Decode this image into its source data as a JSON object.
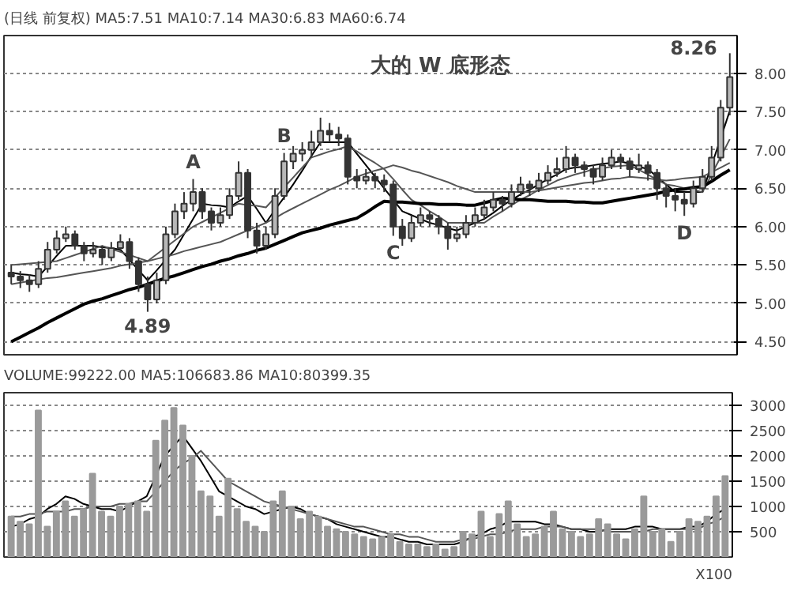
{
  "chart_data": [
    {
      "type": "candlestick",
      "title": "(日线 前复权) MA5:7.51 MA10:7.14 MA30:6.83 MA60:6.74",
      "color": "#333333",
      "categories": [
        null,
        null,
        null,
        null,
        null,
        null,
        null,
        null,
        null,
        null,
        null,
        null,
        null,
        null,
        null,
        null,
        null,
        null,
        null,
        null,
        null,
        null,
        null,
        null,
        null,
        null,
        null,
        null,
        null,
        null,
        null,
        null,
        null,
        null,
        null,
        null,
        null,
        null,
        null,
        null,
        null,
        null,
        null,
        null,
        null,
        null,
        null,
        null,
        null,
        null,
        null,
        null,
        null,
        null,
        null,
        null,
        null,
        null,
        null,
        null,
        null,
        null,
        null,
        null,
        null,
        null,
        null,
        null,
        null,
        null,
        null,
        null,
        null,
        null,
        null,
        null,
        null,
        null,
        null,
        null
      ],
      "ohlc": [
        [
          5.4,
          5.5,
          5.25,
          5.35
        ],
        [
          5.35,
          5.42,
          5.2,
          5.3
        ],
        [
          5.3,
          5.38,
          5.15,
          5.25
        ],
        [
          5.25,
          5.55,
          5.2,
          5.45
        ],
        [
          5.45,
          5.8,
          5.4,
          5.7
        ],
        [
          5.7,
          5.95,
          5.65,
          5.85
        ],
        [
          5.85,
          6.0,
          5.8,
          5.9
        ],
        [
          5.9,
          5.95,
          5.7,
          5.75
        ],
        [
          5.75,
          5.8,
          5.55,
          5.65
        ],
        [
          5.65,
          5.8,
          5.6,
          5.7
        ],
        [
          5.7,
          5.75,
          5.5,
          5.6
        ],
        [
          5.6,
          5.8,
          5.55,
          5.72
        ],
        [
          5.72,
          5.9,
          5.68,
          5.8
        ],
        [
          5.8,
          5.85,
          5.45,
          5.55
        ],
        [
          5.55,
          5.6,
          5.15,
          5.25
        ],
        [
          5.25,
          5.35,
          4.89,
          5.05
        ],
        [
          5.05,
          5.4,
          5.0,
          5.3
        ],
        [
          5.3,
          6.0,
          5.25,
          5.9
        ],
        [
          5.9,
          6.3,
          5.85,
          6.2
        ],
        [
          6.2,
          6.45,
          6.1,
          6.3
        ],
        [
          6.3,
          6.62,
          6.2,
          6.45
        ],
        [
          6.45,
          6.5,
          6.1,
          6.2
        ],
        [
          6.2,
          6.25,
          5.95,
          6.05
        ],
        [
          6.05,
          6.25,
          6.0,
          6.15
        ],
        [
          6.15,
          6.5,
          6.1,
          6.4
        ],
        [
          6.4,
          6.85,
          6.35,
          6.7
        ],
        [
          6.7,
          6.75,
          5.85,
          5.95
        ],
        [
          5.95,
          6.05,
          5.65,
          5.75
        ],
        [
          5.75,
          6.0,
          5.7,
          5.9
        ],
        [
          5.9,
          6.5,
          5.85,
          6.4
        ],
        [
          6.4,
          6.96,
          6.35,
          6.85
        ],
        [
          6.85,
          7.05,
          6.75,
          6.95
        ],
        [
          6.95,
          7.1,
          6.85,
          7.0
        ],
        [
          7.0,
          7.25,
          6.9,
          7.1
        ],
        [
          7.1,
          7.42,
          7.05,
          7.25
        ],
        [
          7.25,
          7.35,
          7.1,
          7.2
        ],
        [
          7.2,
          7.3,
          7.05,
          7.15
        ],
        [
          7.15,
          7.2,
          6.55,
          6.65
        ],
        [
          6.65,
          6.75,
          6.5,
          6.6
        ],
        [
          6.6,
          6.75,
          6.55,
          6.65
        ],
        [
          6.65,
          6.7,
          6.5,
          6.6
        ],
        [
          6.6,
          6.68,
          6.45,
          6.55
        ],
        [
          6.55,
          6.6,
          5.88,
          6.0
        ],
        [
          6.0,
          6.1,
          5.75,
          5.85
        ],
        [
          5.85,
          6.15,
          5.8,
          6.05
        ],
        [
          6.05,
          6.25,
          6.0,
          6.15
        ],
        [
          6.15,
          6.2,
          6.0,
          6.1
        ],
        [
          6.1,
          6.15,
          5.9,
          6.0
        ],
        [
          6.0,
          6.05,
          5.7,
          5.85
        ],
        [
          5.85,
          6.0,
          5.8,
          5.9
        ],
        [
          5.9,
          6.15,
          5.85,
          6.05
        ],
        [
          6.05,
          6.25,
          6.0,
          6.15
        ],
        [
          6.15,
          6.35,
          6.1,
          6.25
        ],
        [
          6.25,
          6.45,
          6.2,
          6.35
        ],
        [
          6.35,
          6.4,
          6.2,
          6.3
        ],
        [
          6.3,
          6.55,
          6.25,
          6.45
        ],
        [
          6.45,
          6.65,
          6.4,
          6.55
        ],
        [
          6.55,
          6.6,
          6.4,
          6.5
        ],
        [
          6.5,
          6.7,
          6.45,
          6.6
        ],
        [
          6.6,
          6.8,
          6.55,
          6.7
        ],
        [
          6.7,
          6.9,
          6.65,
          6.75
        ],
        [
          6.75,
          7.05,
          6.7,
          6.9
        ],
        [
          6.9,
          6.95,
          6.7,
          6.8
        ],
        [
          6.8,
          6.85,
          6.65,
          6.75
        ],
        [
          6.75,
          6.8,
          6.55,
          6.65
        ],
        [
          6.65,
          6.9,
          6.6,
          6.8
        ],
        [
          6.8,
          7.0,
          6.75,
          6.9
        ],
        [
          6.9,
          6.95,
          6.75,
          6.85
        ],
        [
          6.85,
          6.9,
          6.65,
          6.75
        ],
        [
          6.75,
          6.95,
          6.7,
          6.8
        ],
        [
          6.8,
          6.85,
          6.6,
          6.7
        ],
        [
          6.7,
          6.75,
          6.35,
          6.5
        ],
        [
          6.5,
          6.55,
          6.25,
          6.4
        ],
        [
          6.4,
          6.5,
          6.2,
          6.35
        ],
        [
          6.35,
          6.45,
          6.14,
          6.3
        ],
        [
          6.3,
          6.6,
          6.25,
          6.5
        ],
        [
          6.5,
          6.75,
          6.45,
          6.65
        ],
        [
          6.65,
          7.05,
          6.6,
          6.9
        ],
        [
          6.9,
          7.65,
          6.85,
          7.55
        ],
        [
          7.55,
          8.26,
          7.45,
          7.95
        ]
      ],
      "series": [
        {
          "type": "line",
          "color": "#000000",
          "values": [
            5.4,
            5.38,
            5.37,
            5.35,
            5.48,
            5.62,
            5.75,
            5.75,
            5.75,
            5.75,
            5.73,
            5.72,
            5.7,
            5.57,
            5.43,
            5.3,
            5.43,
            5.57,
            5.7,
            5.9,
            6.1,
            6.3,
            6.28,
            6.27,
            6.25,
            6.33,
            6.4,
            6.23,
            6.05,
            6.22,
            6.38,
            6.55,
            6.73,
            6.92,
            7.1,
            7.1,
            7.1,
            7.1,
            6.95,
            6.8,
            6.65,
            6.5,
            6.35,
            6.2,
            6.15,
            6.1,
            6.05,
            6.02,
            5.98,
            5.95,
            6.0,
            6.05,
            6.1,
            6.18,
            6.27,
            6.35,
            6.42,
            6.48,
            6.55,
            6.62,
            6.68,
            6.75,
            6.77,
            6.78,
            6.8,
            6.82,
            6.83,
            6.85,
            6.82,
            6.78,
            6.75,
            6.65,
            6.55,
            6.45,
            6.45,
            6.45,
            6.45,
            6.8,
            7.15,
            7.51
          ]
        },
        {
          "type": "line",
          "color": "#555555",
          "values": [
            5.5,
            5.51,
            5.52,
            5.53,
            5.54,
            5.55,
            5.59,
            5.63,
            5.67,
            5.71,
            5.75,
            5.71,
            5.67,
            5.63,
            5.59,
            5.55,
            5.64,
            5.73,
            5.82,
            5.91,
            6.0,
            6.06,
            6.12,
            6.18,
            6.24,
            6.3,
            6.28,
            6.27,
            6.25,
            6.38,
            6.51,
            6.64,
            6.77,
            6.9,
            6.94,
            6.98,
            7.01,
            7.05,
            6.98,
            6.9,
            6.83,
            6.75,
            6.62,
            6.48,
            6.35,
            6.28,
            6.2,
            6.13,
            6.05,
            6.05,
            6.05,
            6.05,
            6.05,
            6.13,
            6.2,
            6.28,
            6.35,
            6.41,
            6.48,
            6.54,
            6.6,
            6.64,
            6.68,
            6.71,
            6.75,
            6.76,
            6.78,
            6.79,
            6.8,
            6.74,
            6.68,
            6.61,
            6.55,
            6.53,
            6.5,
            6.48,
            6.45,
            6.68,
            6.91,
            7.14
          ]
        },
        {
          "type": "line",
          "color": "#555555",
          "values": [
            5.25,
            5.27,
            5.29,
            5.31,
            5.33,
            5.34,
            5.36,
            5.38,
            5.4,
            5.42,
            5.44,
            5.46,
            5.49,
            5.51,
            5.53,
            5.55,
            5.58,
            5.61,
            5.64,
            5.68,
            5.71,
            5.74,
            5.77,
            5.8,
            5.85,
            5.9,
            5.95,
            6.0,
            6.05,
            6.11,
            6.18,
            6.24,
            6.3,
            6.36,
            6.42,
            6.48,
            6.53,
            6.59,
            6.65,
            6.69,
            6.73,
            6.76,
            6.8,
            6.77,
            6.73,
            6.7,
            6.66,
            6.62,
            6.58,
            6.53,
            6.49,
            6.45,
            6.45,
            6.45,
            6.45,
            6.45,
            6.45,
            6.45,
            6.47,
            6.49,
            6.51,
            6.53,
            6.55,
            6.57,
            6.58,
            6.6,
            6.62,
            6.63,
            6.65,
            6.64,
            6.63,
            6.61,
            6.6,
            6.61,
            6.63,
            6.64,
            6.65,
            6.71,
            6.77,
            6.83
          ]
        },
        {
          "type": "line",
          "color": "#000000",
          "values": [
            4.5,
            4.56,
            4.62,
            4.68,
            4.75,
            4.81,
            4.87,
            4.93,
            4.99,
            5.03,
            5.06,
            5.1,
            5.14,
            5.18,
            5.21,
            5.25,
            5.29,
            5.33,
            5.36,
            5.4,
            5.44,
            5.48,
            5.51,
            5.55,
            5.58,
            5.62,
            5.65,
            5.69,
            5.72,
            5.77,
            5.82,
            5.87,
            5.92,
            5.95,
            5.98,
            6.02,
            6.05,
            6.08,
            6.11,
            6.18,
            6.26,
            6.33,
            6.32,
            6.32,
            6.31,
            6.3,
            6.3,
            6.29,
            6.29,
            6.29,
            6.28,
            6.28,
            6.31,
            6.34,
            6.37,
            6.36,
            6.35,
            6.35,
            6.34,
            6.33,
            6.33,
            6.33,
            6.32,
            6.32,
            6.31,
            6.31,
            6.33,
            6.35,
            6.37,
            6.39,
            6.41,
            6.43,
            6.46,
            6.48,
            6.49,
            6.51,
            6.52,
            6.59,
            6.67,
            6.74
          ]
        }
      ],
      "ylim": [
        4.33,
        8.49
      ],
      "yticks": [
        {
          "value": 4.5,
          "label": "4.50"
        },
        {
          "value": 5,
          "label": "5.00"
        },
        {
          "value": 5.5,
          "label": "5.50"
        },
        {
          "value": 6,
          "label": "6.00"
        },
        {
          "value": 6.5,
          "label": "6.50"
        },
        {
          "value": 7,
          "label": "7.00"
        },
        {
          "value": 7.5,
          "label": "7.50"
        },
        {
          "value": 8,
          "label": "8.00"
        }
      ],
      "tick_labels": "y",
      "grid": "y",
      "annotations": [
        "大的 W 底形态",
        {
          "text": "A",
          "y": 6.62
        },
        {
          "text": "B",
          "y": 6.96
        },
        {
          "text": "C",
          "y": 5.88
        },
        {
          "text": "D",
          "y": 6.14
        },
        {
          "text": "4.89",
          "y": 4.89
        },
        "8.26"
      ]
    },
    {
      "type": "bar",
      "title": "VOLUME:99222.00 MA5:106683.86 MA10:80399.35",
      "color": "#9a9a9a",
      "categories": [
        null,
        null,
        null,
        null,
        null,
        null,
        null,
        null,
        null,
        null,
        null,
        null,
        null,
        null,
        null,
        null,
        null,
        null,
        null,
        null,
        null,
        null,
        null,
        null,
        null,
        null,
        null,
        null,
        null,
        null,
        null,
        null,
        null,
        null,
        null,
        null,
        null,
        null,
        null,
        null,
        null,
        null,
        null,
        null,
        null,
        null,
        null,
        null,
        null,
        null,
        null,
        null,
        null,
        null,
        null,
        null,
        null,
        null,
        null,
        null,
        null,
        null,
        null,
        null,
        null,
        null,
        null,
        null,
        null,
        null,
        null,
        null,
        null,
        null,
        null,
        null,
        null,
        null,
        null,
        null
      ],
      "values": [
        800,
        700,
        650,
        2900,
        600,
        900,
        1100,
        800,
        950,
        1650,
        900,
        800,
        1000,
        1050,
        1100,
        900,
        2300,
        2700,
        2950,
        2600,
        2000,
        1300,
        1200,
        800,
        1550,
        950,
        700,
        600,
        500,
        1100,
        1300,
        1000,
        750,
        900,
        800,
        600,
        550,
        500,
        450,
        400,
        350,
        400,
        450,
        300,
        250,
        250,
        200,
        250,
        150,
        200,
        500,
        450,
        900,
        400,
        850,
        1100,
        650,
        400,
        450,
        600,
        900,
        550,
        500,
        400,
        450,
        750,
        650,
        450,
        350,
        550,
        1200,
        500,
        550,
        300,
        500,
        750,
        700,
        800,
        1200,
        1600
      ],
      "series": [
        {
          "type": "line",
          "color": "#000000",
          "values": [
            600,
            650,
            750,
            800,
            950,
            1050,
            1200,
            1150,
            1050,
            1000,
            950,
            950,
            900,
            1000,
            1100,
            1200,
            1600,
            2000,
            2200,
            2400,
            2150,
            1900,
            1600,
            1300,
            1200,
            1100,
            1000,
            950,
            850,
            900,
            950,
            1000,
            950,
            850,
            800,
            750,
            650,
            600,
            550,
            500,
            450,
            400,
            400,
            350,
            300,
            300,
            250,
            250,
            250,
            250,
            300,
            400,
            450,
            550,
            600,
            700,
            700,
            700,
            700,
            650,
            650,
            600,
            550,
            550,
            500,
            500,
            550,
            550,
            550,
            600,
            600,
            600,
            550,
            550,
            550,
            600,
            600,
            700,
            850,
            950
          ]
        },
        {
          "type": "line",
          "color": "#555555",
          "values": [
            800,
            800,
            850,
            850,
            900,
            900,
            900,
            950,
            950,
            1000,
            1000,
            1000,
            1050,
            1050,
            1100,
            1100,
            1300,
            1500,
            1700,
            1850,
            1950,
            2100,
            1900,
            1700,
            1500,
            1400,
            1300,
            1200,
            1100,
            1050,
            1000,
            950,
            900,
            850,
            800,
            750,
            700,
            650,
            600,
            600,
            550,
            500,
            450,
            450,
            400,
            400,
            350,
            300,
            300,
            300,
            350,
            350,
            400,
            450,
            450,
            500,
            550,
            550,
            550,
            600,
            600,
            600,
            550,
            550,
            550,
            550,
            500,
            500,
            500,
            500,
            500,
            550,
            550,
            550,
            550,
            550,
            550,
            650,
            700,
            800
          ]
        }
      ],
      "ylim": [
        0,
        3250
      ],
      "yticks": [
        500,
        1000,
        1500,
        2000,
        2500,
        3000
      ],
      "tick_labels": "y",
      "grid": "y",
      "annotations": [
        "X100"
      ]
    }
  ]
}
